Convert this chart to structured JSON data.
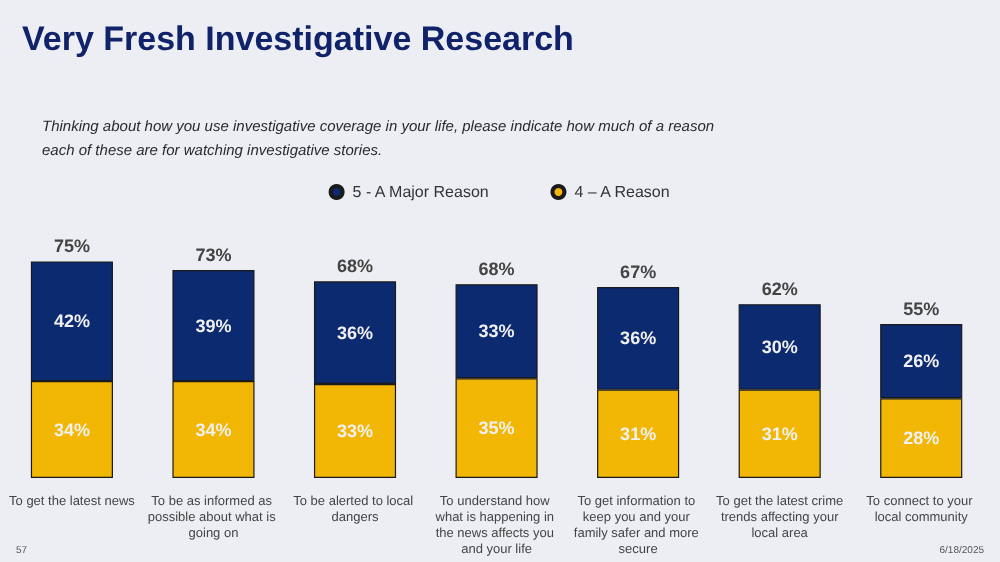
{
  "chart_data": {
    "type": "bar",
    "stacked": true,
    "title": "Very Fresh Investigative Research",
    "subtitle": "Thinking about how you use investigative coverage in your life, please indicate how much of a reason each of these are for watching investigative stories.",
    "categories": [
      "To get the latest news",
      "To be as informed as possible about what is going on",
      "To be alerted to local dangers",
      "To understand how what is happening in the news affects you and your life",
      "To get information to keep you and your family safer and more secure",
      "To get the latest crime trends affecting your local area",
      "To connect to your local community"
    ],
    "series": [
      {
        "name": "4 – A Reason",
        "color": "#f2b705",
        "values": [
          34,
          34,
          33,
          35,
          31,
          31,
          28
        ],
        "value_labels": [
          "34%",
          "34%",
          "33%",
          "35%",
          "31%",
          "31%",
          "28%"
        ]
      },
      {
        "name": "5 - A Major Reason",
        "color": "#0b2a6f",
        "values": [
          42,
          39,
          36,
          33,
          36,
          30,
          26
        ],
        "value_labels": [
          "42%",
          "39%",
          "36%",
          "33%",
          "36%",
          "30%",
          "26%"
        ]
      }
    ],
    "totals": [
      "75%",
      "73%",
      "68%",
      "68%",
      "67%",
      "62%",
      "55%"
    ],
    "legend": "top",
    "grid": false,
    "annotations": [
      "57",
      "6/18/2025"
    ]
  }
}
